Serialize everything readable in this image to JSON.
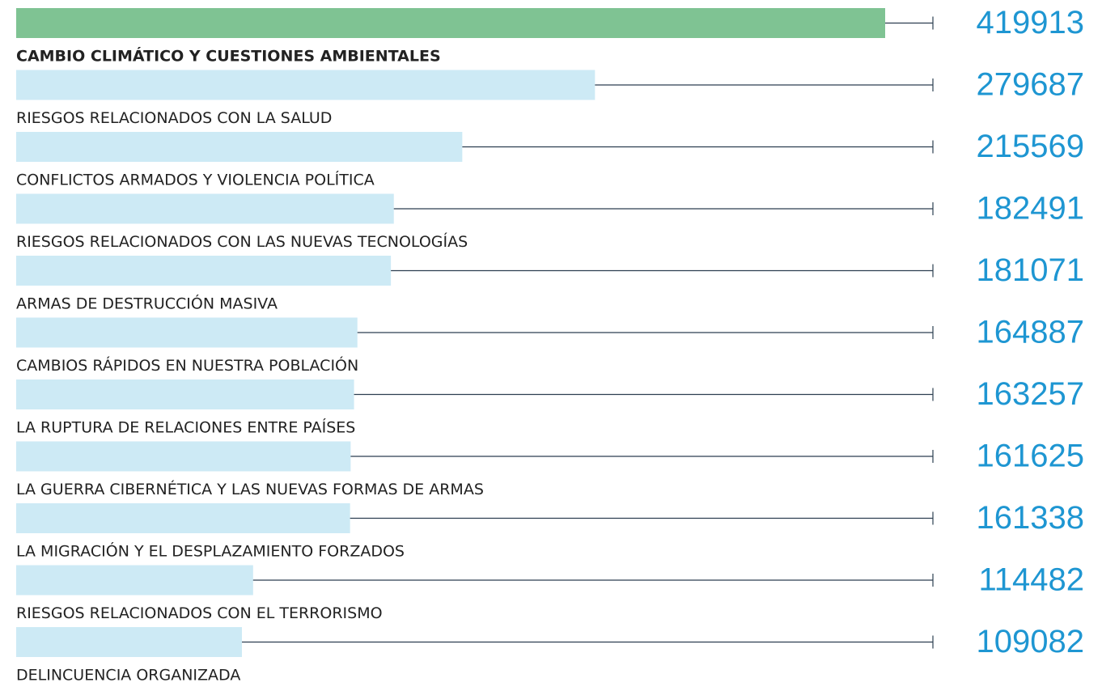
{
  "chart_data": {
    "type": "bar",
    "orientation": "horizontal",
    "categories": [
      "CAMBIO CLIMÁTICO Y CUESTIONES AMBIENTALES",
      "RIESGOS RELACIONADOS CON LA SALUD",
      "CONFLICTOS ARMADOS Y VIOLENCIA POLÍTICA",
      "RIESGOS RELACIONADOS CON LAS NUEVAS TECNOLOGÍAS",
      "ARMAS DE DESTRUCCIÓN MASIVA",
      "CAMBIOS RÁPIDOS EN NUESTRA POBLACIÓN",
      "LA RUPTURA DE RELACIONES ENTRE PAÍSES",
      "LA GUERRA CIBERNÉTICA Y LAS NUEVAS FORMAS DE ARMAS",
      "LA MIGRACIÓN Y EL DESPLAZAMIENTO FORZADOS",
      "RIESGOS RELACIONADOS CON EL TERRORISMO",
      "DELINCUENCIA ORGANIZADA"
    ],
    "values": [
      419913,
      279687,
      215569,
      182491,
      181071,
      164887,
      163257,
      161625,
      161338,
      114482,
      109082
    ],
    "color": "#cdeaf5",
    "highlight": {
      "index": 0,
      "color": "#7fc393"
    },
    "value_label_color": "#1e96d2"
  }
}
